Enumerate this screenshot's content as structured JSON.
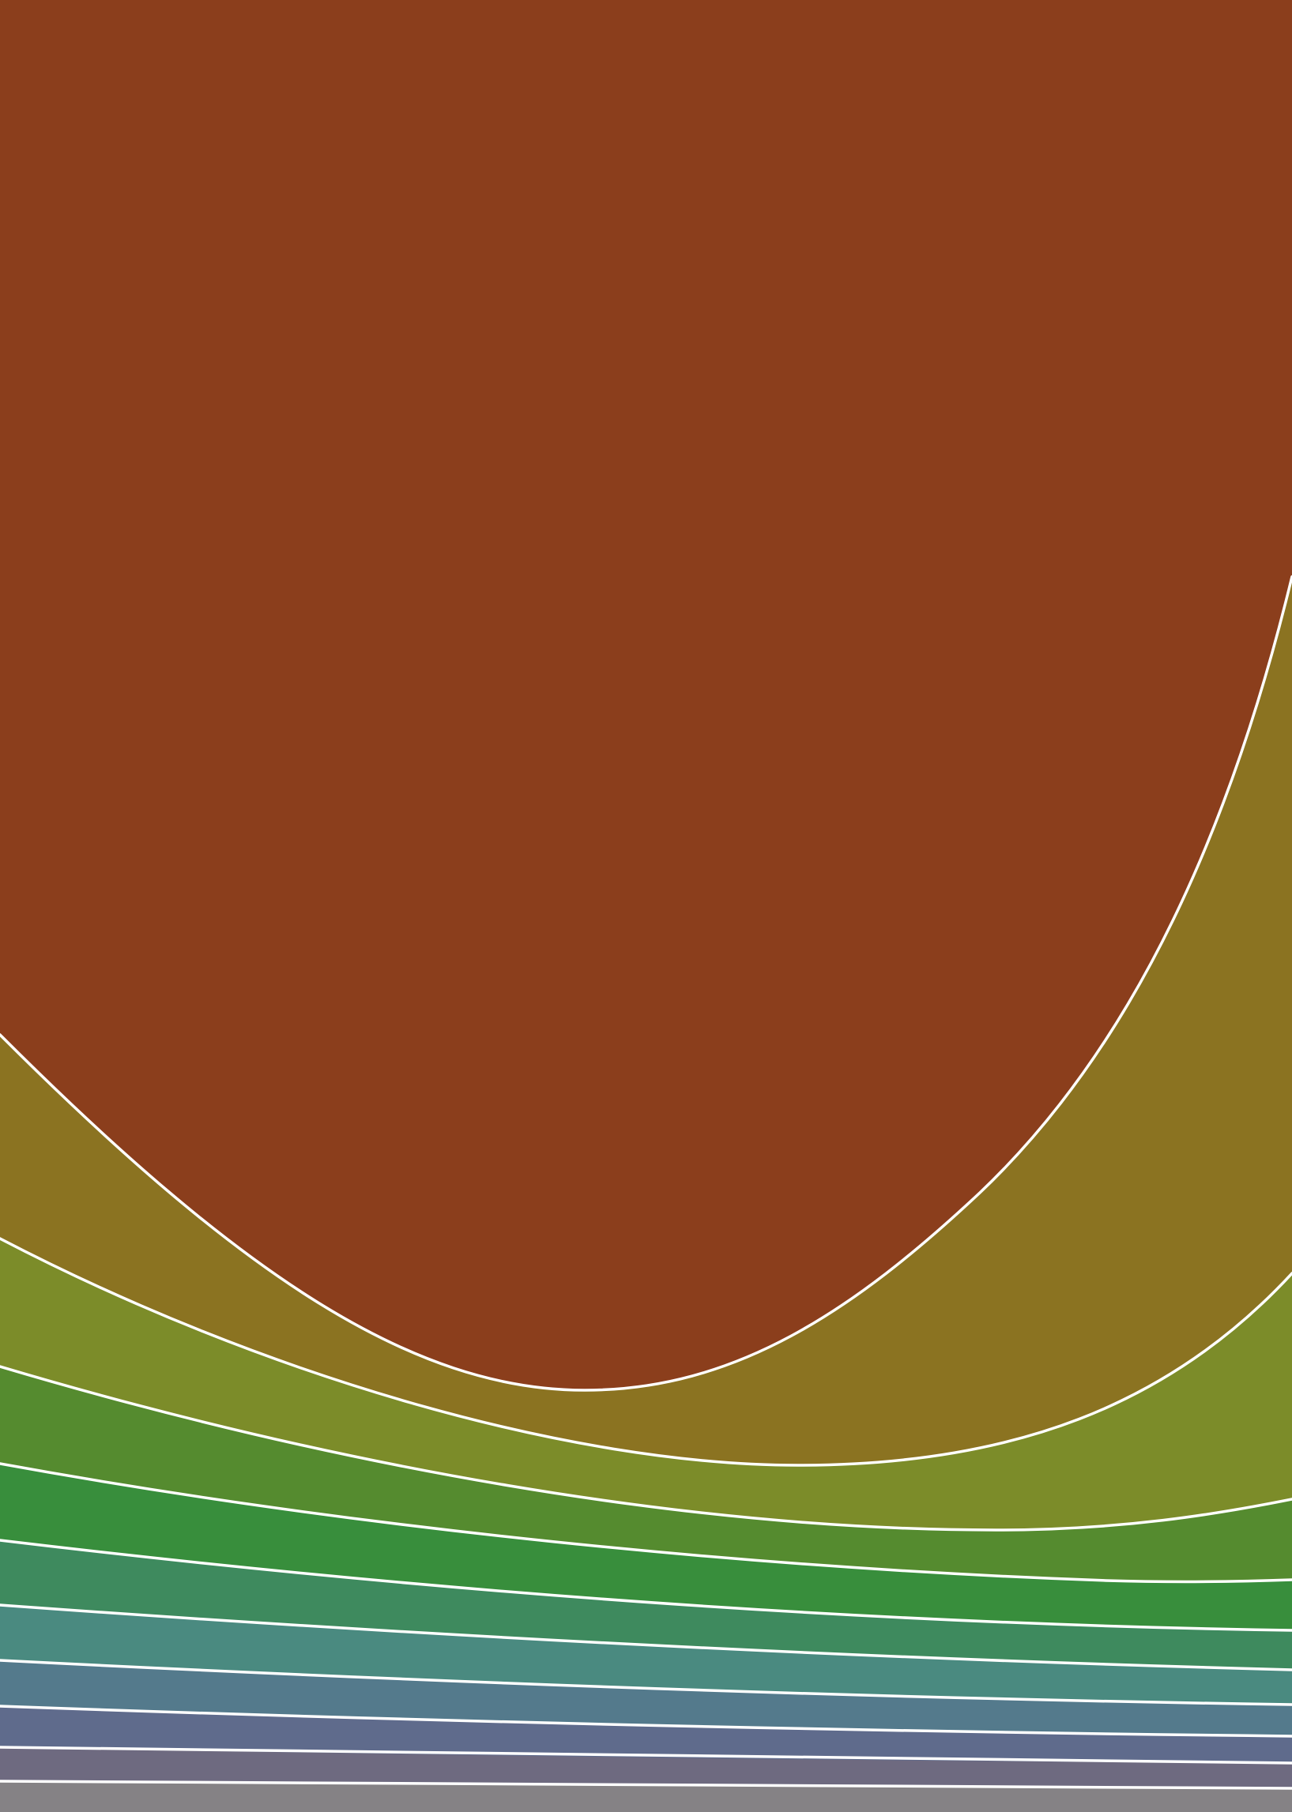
{
  "artwork": {
    "palette": {
      "band_1": "#8b3e1c",
      "band_2": "#8b7321",
      "band_3": "#7c8c29",
      "band_4": "#558b2f",
      "band_5": "#388e3c",
      "band_6": "#3e8a5e",
      "band_7": "#4a8a80",
      "band_8": "#547a8c",
      "band_9": "#5f6b8c",
      "band_10": "#6e6a80",
      "band_11": "#858285",
      "separator": "#ffffff"
    }
  }
}
